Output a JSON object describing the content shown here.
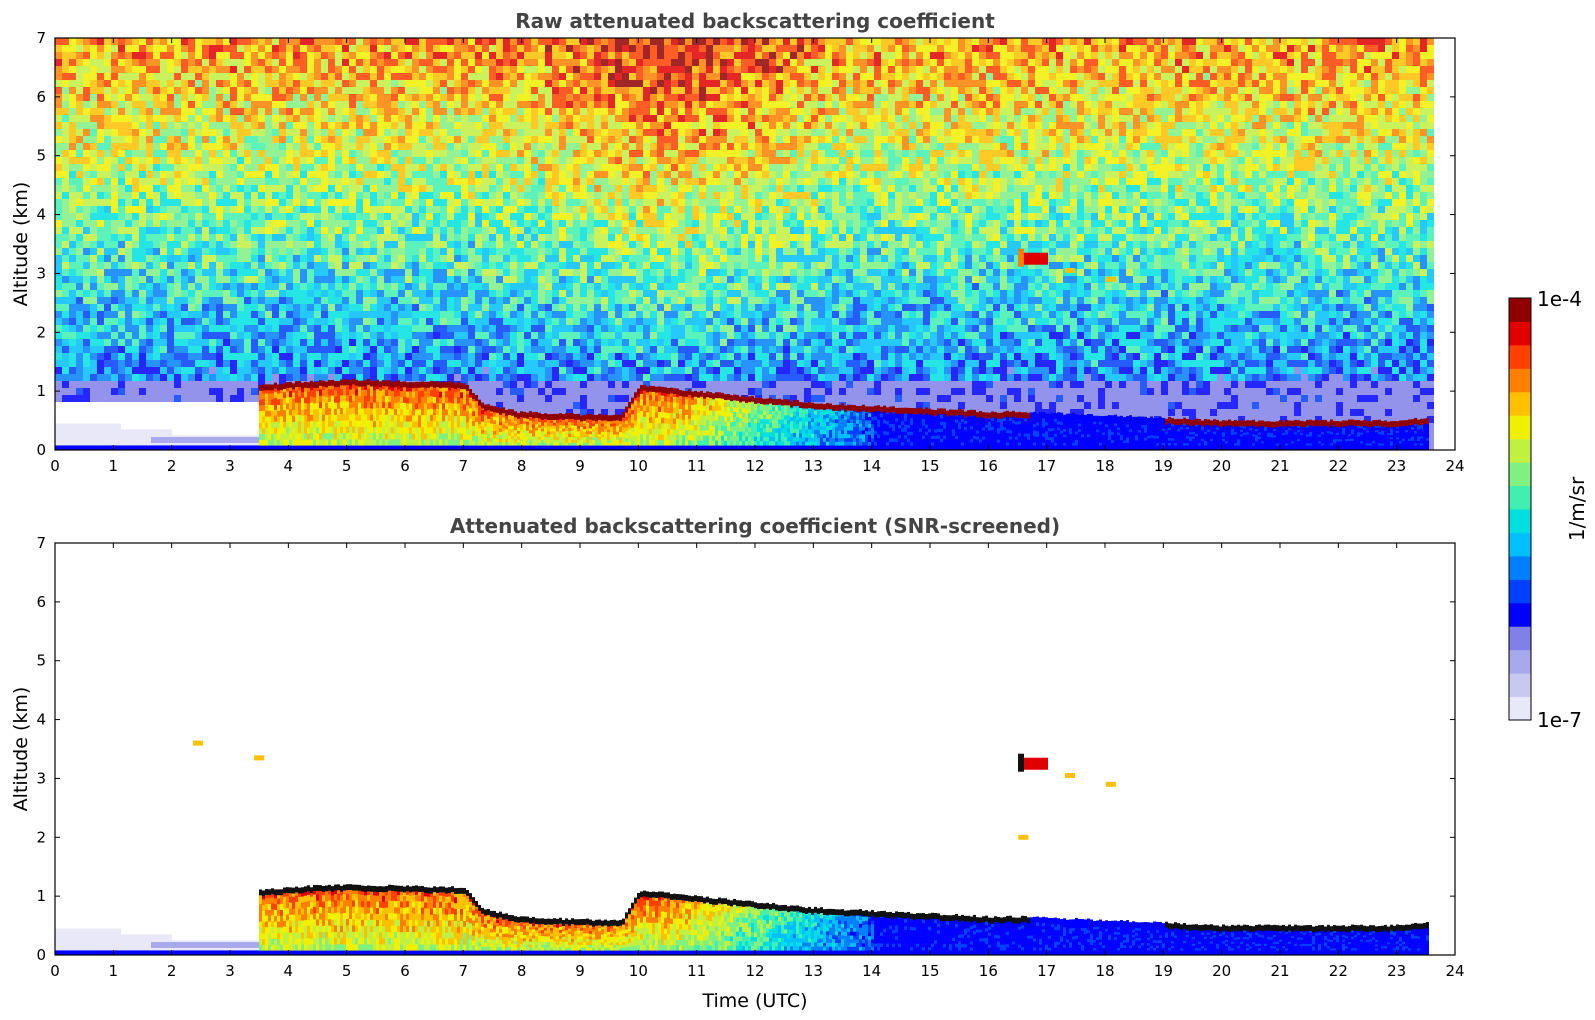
{
  "chart_data": [
    {
      "type": "heatmap",
      "title": "Raw attenuated backscattering coefficient",
      "xlabel": "",
      "ylabel": "Altitude (km)",
      "xlim": [
        0,
        24
      ],
      "ylim": [
        0,
        7
      ],
      "xticks": [
        0,
        1,
        2,
        3,
        4,
        5,
        6,
        7,
        8,
        9,
        10,
        11,
        12,
        13,
        14,
        15,
        16,
        17,
        18,
        19,
        20,
        21,
        22,
        23,
        24
      ],
      "yticks": [
        0,
        1,
        2,
        3,
        4,
        5,
        6,
        7
      ],
      "data_end_time": 23.55,
      "cloud_layer": {
        "time": [
          3.5,
          4,
          5,
          6,
          7,
          7.3,
          7.9,
          9,
          9.7,
          10,
          10.5,
          11,
          12,
          13,
          14,
          15,
          16,
          16.5,
          19,
          20,
          21,
          22,
          23,
          23.55
        ],
        "top_km": [
          1.05,
          1.1,
          1.15,
          1.12,
          1.1,
          0.75,
          0.6,
          0.55,
          0.55,
          1.05,
          1.0,
          0.95,
          0.85,
          0.75,
          0.7,
          0.65,
          0.6,
          0.6,
          0.5,
          0.45,
          0.45,
          0.45,
          0.45,
          0.5
        ]
      },
      "elevated_features": [
        {
          "time": 16.8,
          "altitude_km": 3.25
        },
        {
          "time": 17.4,
          "altitude_km": 3.05
        },
        {
          "time": 18.1,
          "altitude_km": 2.9
        }
      ]
    },
    {
      "type": "heatmap",
      "title": "Attenuated backscattering coefficient (SNR-screened)",
      "xlabel": "Time (UTC)",
      "ylabel": "Altitude (km)",
      "xlim": [
        0,
        24
      ],
      "ylim": [
        0,
        7
      ],
      "xticks": [
        0,
        1,
        2,
        3,
        4,
        5,
        6,
        7,
        8,
        9,
        10,
        11,
        12,
        13,
        14,
        15,
        16,
        17,
        18,
        19,
        20,
        21,
        22,
        23,
        24
      ],
      "yticks": [
        0,
        1,
        2,
        3,
        4,
        5,
        6,
        7
      ],
      "data_end_time": 23.55,
      "cloud_layer": {
        "time": [
          3.5,
          4,
          5,
          6,
          7,
          7.3,
          7.9,
          9,
          9.7,
          10,
          10.5,
          11,
          12,
          13,
          14,
          15,
          16,
          16.5,
          19,
          20,
          21,
          22,
          23,
          23.55
        ],
        "top_km": [
          1.05,
          1.1,
          1.15,
          1.12,
          1.1,
          0.75,
          0.6,
          0.55,
          0.55,
          1.05,
          1.0,
          0.95,
          0.85,
          0.75,
          0.7,
          0.65,
          0.6,
          0.6,
          0.5,
          0.45,
          0.45,
          0.45,
          0.45,
          0.5
        ]
      },
      "elevated_features": [
        {
          "time": 16.8,
          "altitude_km": 3.25
        },
        {
          "time": 17.4,
          "altitude_km": 3.05
        },
        {
          "time": 18.1,
          "altitude_km": 2.9
        },
        {
          "time": 2.45,
          "altitude_km": 3.6
        },
        {
          "time": 3.5,
          "altitude_km": 3.35
        },
        {
          "time": 16.6,
          "altitude_km": 2.0
        }
      ]
    }
  ],
  "colorbar": {
    "label": "1/m/sr",
    "max_label": "1e-4",
    "min_label": "1e-7",
    "colors": [
      "#e8e8f8",
      "#c8c8f0",
      "#a8a8ec",
      "#8080e8",
      "#0000ff",
      "#0040ff",
      "#0080ff",
      "#00c0ff",
      "#00e0e0",
      "#40f0b0",
      "#80f080",
      "#c0f040",
      "#f0f000",
      "#ffc000",
      "#ff8000",
      "#ff4000",
      "#e00000",
      "#900000"
    ]
  }
}
